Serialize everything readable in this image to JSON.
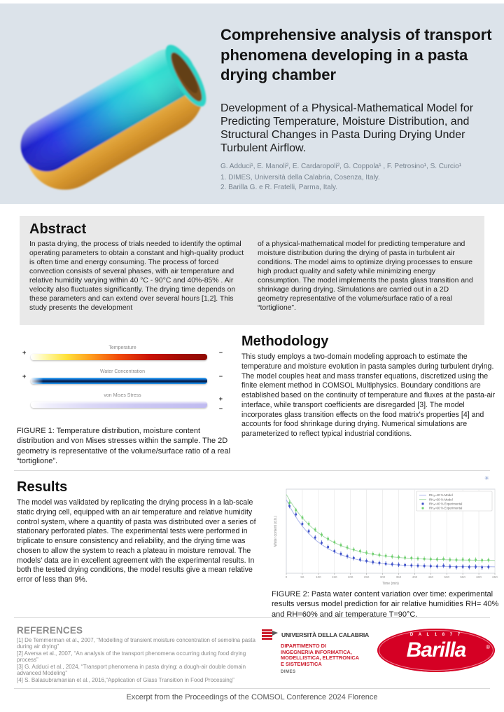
{
  "header": {
    "title": "Comprehensive analysis of transport phenomena developing in a pasta drying chamber",
    "subtitle": "Development of a Physical-Mathematical Model for Predicting Temperature, Moisture Distribution, and Structural Changes in Pasta During Drying Under Turbulent Airflow.",
    "authors": "G. Adduci¹, E. Manoli², E. Cardaropoli², G. Coppola¹ , F. Petrosino¹, S. Curcio¹",
    "affiliation1": "1. DIMES, Università della Calabria, Cosenza, Italy.",
    "affiliation2": "2. Barilla G. e R. Fratelli, Parma, Italy."
  },
  "abstract": {
    "heading": "Abstract",
    "col1": "In pasta drying, the process of trials needed to identify the optimal operating parameters to obtain a constant and high-quality product is often time and energy consuming. The process of forced convection consists of several phases, with air temperature and relative humidity varying within 40 °C - 90°C and 40%-85% . Air velocity also fluctuates significantly. The drying time depends on these parameters and can extend over several hours [1,2]. This study presents the development",
    "col2": "of a physical-mathematical model for predicting temperature and moisture distribution during the drying of pasta in turbulent air conditions. The model aims to optimize drying processes to ensure high product quality and safety while minimizing energy consumption. The model implements the pasta glass transition and shrinkage during drying. Simulations are carried out in a 2D geometry representative of the volume/surface ratio of a real “tortiglione”."
  },
  "methodology": {
    "heading": "Methodology",
    "body": "This study employs a two-domain modeling approach to estimate the temperature and moisture evolution in pasta samples during turbulent drying. The model couples heat and mass transfer equations, discretized using the finite element method in COMSOL Multiphysics. Boundary conditions are established based on the continuity of temperature and fluxes at the pasta-air interface, while transport coefficients are disregarded [3]. The model incorporates glass transition effects on the food matrix's properties [4] and accounts for food shrinkage during drying. Numerical simulations are parameterized to reflect typical industrial conditions."
  },
  "figure1": {
    "labels": [
      "Temperature",
      "Water Concentration",
      "von Mises Stress"
    ],
    "plus": "+",
    "minus": "−",
    "caption": "FIGURE 1: Temperature distribution, moisture content distribution and von Mises stresses within the sample. The 2D geometry is representative of the volume/surface ratio of a real “tortiglione”."
  },
  "results": {
    "heading": "Results",
    "body": "The model was validated by replicating the drying process in a lab-scale static drying cell, equipped with an air temperature and relative humidity control system, where a quantity of pasta was distributed over a series of stationary perforated plates. The experimental tests were performed in triplicate to ensure consistency and reliability, and the drying time was chosen to allow the system to reach a plateau in moisture removal. The models’ data are in excellent agreement with the experimental results. In both the tested drying conditions, the model results give a mean relative error of less than 9%."
  },
  "figure2": {
    "caption": "FIGURE 2:  Pasta water content variation over time: experimental results versus model prediction for air relative humidities RH= 40% and RH=60% and air temperature T=90°C.",
    "plot_icon": "✳"
  },
  "chart_data": {
    "type": "line",
    "title": "",
    "xlabel": "Time (min)",
    "ylabel": "Water content (d.b.)",
    "xlim": [
      0,
      650
    ],
    "ylim": [
      0.2,
      1.0
    ],
    "x_ticks": [
      0,
      50,
      100,
      150,
      200,
      250,
      300,
      350,
      400,
      450,
      500,
      550,
      600,
      650
    ],
    "grid": "vertical",
    "legend_position": "top-right",
    "series": [
      {
        "name": "RHₐ=40 % Model",
        "type": "line",
        "color": "#aab4ea",
        "model": {
          "w0": 0.9,
          "plateau": 0.26,
          "tau": 100
        }
      },
      {
        "name": "RHₐ=60 % Model",
        "type": "line",
        "color": "#a9dcab",
        "model": {
          "w0": 0.95,
          "plateau": 0.32,
          "tau": 115
        }
      },
      {
        "name": "RHₐ=40 % Experimental",
        "type": "scatter",
        "color": "#3b4fc8",
        "yerr": 0.022,
        "x": [
          10,
          30,
          50,
          70,
          90,
          110,
          130,
          150,
          170,
          190,
          210,
          230,
          250,
          270,
          290,
          310,
          330,
          350,
          370,
          390,
          410,
          430,
          450,
          470,
          490,
          510,
          530,
          550,
          570,
          590,
          610,
          630
        ],
        "y": [
          0.84,
          0.76,
          0.67,
          0.6,
          0.54,
          0.49,
          0.45,
          0.41,
          0.385,
          0.362,
          0.345,
          0.33,
          0.318,
          0.306,
          0.298,
          0.291,
          0.286,
          0.281,
          0.278,
          0.274,
          0.272,
          0.27,
          0.268,
          0.266,
          0.272,
          0.264,
          0.258,
          0.263,
          0.259,
          0.262,
          0.256,
          0.26
        ]
      },
      {
        "name": "RHₐ=60 % Experimental",
        "type": "scatter",
        "color": "#6fcf6f",
        "yerr": 0.022,
        "x": [
          10,
          30,
          50,
          70,
          90,
          110,
          130,
          150,
          170,
          190,
          210,
          230,
          250,
          270,
          290,
          310,
          330,
          350,
          370,
          390,
          410,
          430,
          450,
          470,
          490,
          510,
          530,
          550,
          570,
          590,
          610,
          630
        ],
        "y": [
          0.87,
          0.8,
          0.73,
          0.67,
          0.615,
          0.567,
          0.528,
          0.495,
          0.468,
          0.445,
          0.426,
          0.41,
          0.396,
          0.384,
          0.374,
          0.366,
          0.359,
          0.353,
          0.348,
          0.344,
          0.34,
          0.337,
          0.334,
          0.332,
          0.336,
          0.329,
          0.327,
          0.331,
          0.325,
          0.328,
          0.323,
          0.326
        ]
      }
    ]
  },
  "references": {
    "heading": "REFERENCES",
    "items": [
      "[1] De Temmerman et al., 2007,  “Modelling of transient moisture concentration of semolina pasta during air drying”",
      "[2] Aversa et al., 2007, “An analysis of the transport phenomena occurring during food drying process”",
      "[3] G. Adduci et al., 2024, “Transport phenomena in pasta drying: a dough-air double domain advanced Modeling”",
      "[4] S. Balasubramanian et al., 2016,“Application of Glass Transition in Food Processing”"
    ]
  },
  "logos": {
    "unical": {
      "name": "UNIVERSITÀ DELLA CALABRIA",
      "dept": "DIPARTIMENTO DI\nINGEGNERIA INFORMATICA,\nMODELLISTICA, ELETTRONICA\nE SISTEMISTICA",
      "dimes": "DIMES"
    },
    "barilla": {
      "tagline": "D A L  1 8 7 7",
      "wordmark": "Barilla",
      "registered": "®"
    }
  },
  "footer": "Excerpt from the Proceedings of the COMSOL Conference 2024 Florence",
  "colors": {
    "header_bg": "#dce3ea",
    "abstract_bg": "#e9e9e9",
    "unical_red": "#cc1f2f",
    "barilla_red": "#d50024",
    "series_blue": "#3b4fc8",
    "series_green": "#6fcf6f"
  }
}
